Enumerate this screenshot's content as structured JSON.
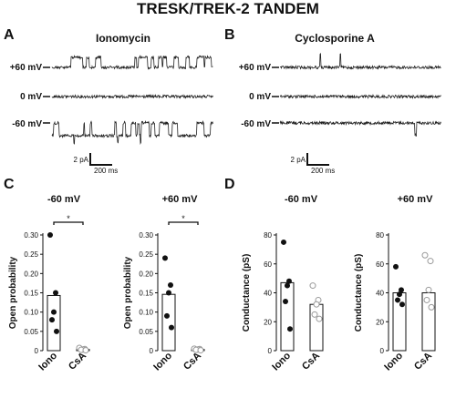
{
  "figure": {
    "title": "TRESK/TREK-2 TANDEM"
  },
  "trace_panels": [
    {
      "letter": "A",
      "condition": "Ionomycin",
      "rows": [
        {
          "voltage": "+60 mV",
          "type": "flicker_up"
        },
        {
          "voltage": "0 mV",
          "type": "flat"
        },
        {
          "voltage": "-60 mV",
          "type": "flicker_down"
        }
      ],
      "scalebar": {
        "amp": "2 pA",
        "time": "200 ms"
      }
    },
    {
      "letter": "B",
      "condition": "Cyclosporine A",
      "rows": [
        {
          "voltage": "+60 mV",
          "type": "rare_up"
        },
        {
          "voltage": "0 mV",
          "type": "flat"
        },
        {
          "voltage": "-60 mV",
          "type": "rare_down"
        }
      ],
      "scalebar": {
        "amp": "2 pA",
        "time": "200 ms"
      }
    }
  ],
  "panel_letters": {
    "C": "C",
    "D": "D"
  },
  "chart_data": [
    {
      "type": "bar",
      "panel": "C",
      "title": "-60 mV",
      "ylabel": "Open probability",
      "categories": [
        "Iono",
        "CsA"
      ],
      "values": [
        0.143,
        0.003
      ],
      "ylim": [
        0,
        0.3
      ],
      "yticks": [
        "0",
        "0.05",
        "0.10",
        "0.15",
        "0.20",
        "0.25",
        "0.30"
      ],
      "points": [
        [
          0.3,
          0.15,
          0.1,
          0.08,
          0.05
        ],
        [
          0.007,
          0.004,
          0.003,
          0.002,
          0.001
        ]
      ],
      "significance": "*"
    },
    {
      "type": "bar",
      "panel": "C",
      "title": "+60 mV",
      "ylabel": "Open probability",
      "categories": [
        "Iono",
        "CsA"
      ],
      "values": [
        0.146,
        0.003
      ],
      "ylim": [
        0,
        0.3
      ],
      "yticks": [
        "0",
        "0.05",
        "0.10",
        "0.15",
        "0.20",
        "0.25",
        "0.30"
      ],
      "points": [
        [
          0.24,
          0.17,
          0.15,
          0.09,
          0.06
        ],
        [
          0.005,
          0.004,
          0.003,
          0.002,
          0.001
        ]
      ],
      "significance": "*"
    },
    {
      "type": "bar",
      "panel": "D",
      "title": "-60 mV",
      "ylabel": "Conductance (pS)",
      "categories": [
        "Iono",
        "CsA"
      ],
      "values": [
        47,
        32
      ],
      "ylim": [
        0,
        80
      ],
      "yticks": [
        "0",
        "20",
        "40",
        "60",
        "80"
      ],
      "points": [
        [
          75,
          48,
          45,
          34,
          15
        ],
        [
          45,
          35,
          32,
          25,
          22
        ]
      ]
    },
    {
      "type": "bar",
      "panel": "D",
      "title": "+60 mV",
      "ylabel": "Conductance (pS)",
      "categories": [
        "Iono",
        "CsA"
      ],
      "values": [
        40,
        40
      ],
      "ylim": [
        0,
        80
      ],
      "yticks": [
        "0",
        "20",
        "40",
        "60",
        "80"
      ],
      "points": [
        [
          58,
          42,
          39,
          35,
          32
        ],
        [
          66,
          62,
          42,
          35,
          30
        ]
      ]
    }
  ],
  "colors": {
    "ink": "#111111",
    "open_marker": "#999999"
  }
}
